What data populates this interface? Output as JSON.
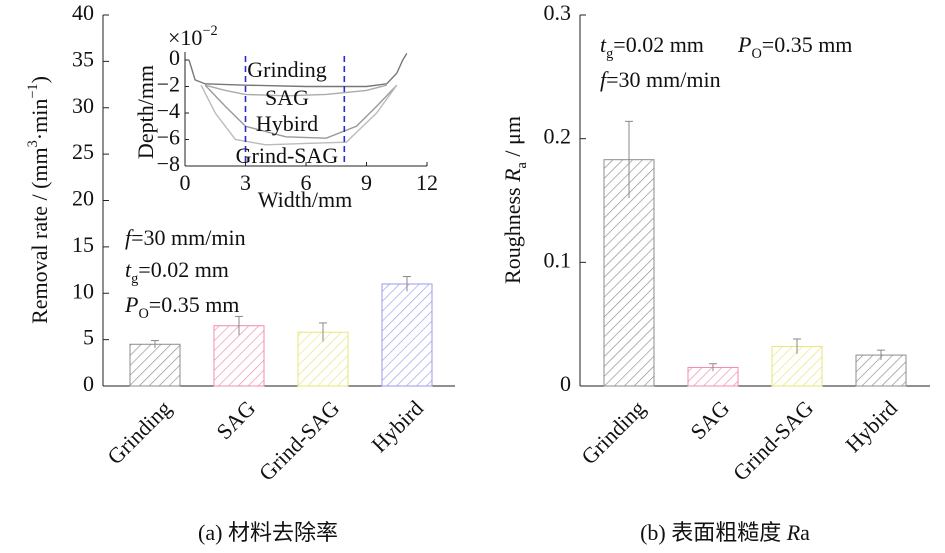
{
  "chart_data": [
    {
      "type": "bar",
      "ylabel": [
        {
          "text": "Removal rate / (mm"
        },
        {
          "text": "3",
          "style": "sup"
        },
        {
          "text": "·min"
        },
        {
          "text": "−1",
          "style": "sup"
        },
        {
          "text": ")"
        }
      ],
      "categories": [
        "Grinding",
        "SAG",
        "Grind-SAG",
        "Hybird"
      ],
      "values": [
        4.5,
        6.5,
        5.8,
        11.0
      ],
      "errors": [
        0.4,
        1.0,
        1.0,
        0.8
      ],
      "colors": [
        "#8c8c8c",
        "#f08cab",
        "#e6e67a",
        "#9b9bea"
      ],
      "ylim": [
        0,
        40
      ],
      "yticks": [
        0,
        5,
        10,
        15,
        20,
        25,
        30,
        35,
        40
      ],
      "annotations": [
        [
          {
            "text": "f",
            "style": "italic"
          },
          {
            "text": "=30 mm/min"
          }
        ],
        [
          {
            "text": "t",
            "style": "italic"
          },
          {
            "text": "g",
            "style": "sub"
          },
          {
            "text": "=0.02 mm"
          }
        ],
        [
          {
            "text": "P",
            "style": "italic"
          },
          {
            "text": "O",
            "style": "sub"
          },
          {
            "text": "=0.35 mm"
          }
        ]
      ],
      "caption": [
        {
          "text": "(a) 材料去除率"
        }
      ]
    },
    {
      "type": "line",
      "scale_note": [
        {
          "text": "×10"
        },
        {
          "text": "−2",
          "style": "sup"
        }
      ],
      "xlabel": "Width/mm",
      "ylabel": "Depth/mm",
      "xlim": [
        0,
        12
      ],
      "xticks": [
        0,
        3,
        6,
        9,
        12
      ],
      "ylim": [
        -8,
        0.6
      ],
      "yticks": [
        0,
        {
          "value": -2,
          "label": "−2"
        },
        {
          "value": -4,
          "label": "−4"
        },
        {
          "value": -6,
          "label": "−6"
        },
        {
          "value": -8,
          "label": "−8"
        }
      ],
      "guides": [
        3,
        7.9
      ],
      "guide_color": "#2a2ad0",
      "series": [
        {
          "name": "Grinding",
          "color": "#777777",
          "x": [
            0.2,
            0.5,
            1,
            3,
            6,
            9,
            10,
            10.5,
            10.8,
            11
          ],
          "y": [
            0,
            -1.5,
            -1.8,
            -1.9,
            -2,
            -2,
            -1.8,
            -1,
            0,
            0.5
          ]
        },
        {
          "name": "SAG",
          "color": "#aaaaaa",
          "x": [
            1,
            2,
            3,
            5,
            7,
            9,
            10
          ],
          "y": [
            -1.9,
            -2.3,
            -2.6,
            -2.7,
            -2.6,
            -2.3,
            -1.9
          ]
        },
        {
          "name": "Hybird",
          "color": "#999999",
          "x": [
            1,
            2,
            3,
            5,
            7,
            8.5,
            9.5,
            10.5
          ],
          "y": [
            -1.9,
            -3.5,
            -5,
            -5.8,
            -5.9,
            -5,
            -3.5,
            -1.9
          ]
        },
        {
          "name": "Grind-SAG",
          "color": "#bbbbbb",
          "x": [
            0.8,
            1.5,
            2.5,
            4,
            6,
            8,
            9.5,
            10.5
          ],
          "y": [
            -1.9,
            -4,
            -6,
            -6.4,
            -6.3,
            -6.2,
            -4,
            -1.9
          ]
        }
      ]
    },
    {
      "type": "bar",
      "ylabel": [
        {
          "text": "Roughness "
        },
        {
          "text": "R",
          "style": "italic"
        },
        {
          "text": "a",
          "style": "sub"
        },
        {
          "text": " / μm"
        }
      ],
      "categories": [
        "Grinding",
        "SAG",
        "Grind-SAG",
        "Hybird"
      ],
      "values": [
        0.183,
        0.015,
        0.032,
        0.025
      ],
      "errors": [
        0.031,
        0.003,
        0.006,
        0.004
      ],
      "colors": [
        "#8c8c8c",
        "#f08cab",
        "#e6e67a",
        "#8c8c8c"
      ],
      "ylim": [
        0,
        0.3
      ],
      "yticks": [
        0,
        0.1,
        0.2,
        0.3
      ],
      "annotations": [
        [
          {
            "text": "t",
            "style": "italic"
          },
          {
            "text": "g",
            "style": "sub"
          },
          {
            "text": "=0.02 mm"
          }
        ],
        [
          {
            "text": "P",
            "style": "italic"
          },
          {
            "text": "O",
            "style": "sub"
          },
          {
            "text": "=0.35 mm"
          }
        ],
        [
          {
            "text": "f",
            "style": "italic"
          },
          {
            "text": "=30 mm/min"
          }
        ]
      ],
      "caption": [
        {
          "text": "(b) 表面粗糙度 "
        },
        {
          "text": "R",
          "style": "italic"
        },
        {
          "text": "a"
        }
      ]
    }
  ]
}
